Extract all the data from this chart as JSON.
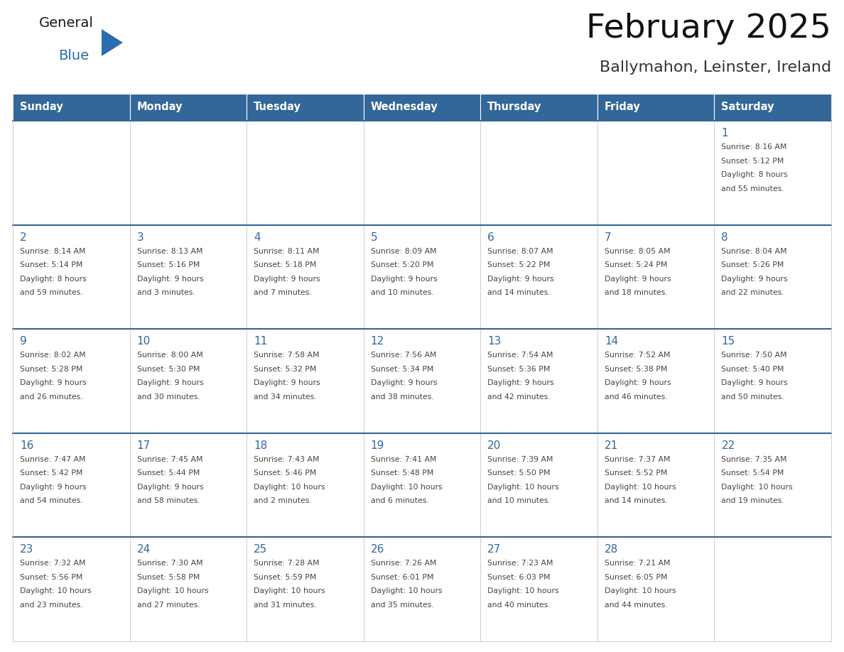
{
  "title": "February 2025",
  "subtitle": "Ballymahon, Leinster, Ireland",
  "header_bg": "#336699",
  "header_text_color": "#ffffff",
  "cell_bg": "#ffffff",
  "cell_bg_alt": "#f2f2f2",
  "day_number_color": "#336699",
  "info_text_color": "#444444",
  "row_top_line_color": "#336699",
  "days_of_week": [
    "Sunday",
    "Monday",
    "Tuesday",
    "Wednesday",
    "Thursday",
    "Friday",
    "Saturday"
  ],
  "weeks": [
    [
      {
        "day": null,
        "info": ""
      },
      {
        "day": null,
        "info": ""
      },
      {
        "day": null,
        "info": ""
      },
      {
        "day": null,
        "info": ""
      },
      {
        "day": null,
        "info": ""
      },
      {
        "day": null,
        "info": ""
      },
      {
        "day": 1,
        "info": "Sunrise: 8:16 AM\nSunset: 5:12 PM\nDaylight: 8 hours\nand 55 minutes."
      }
    ],
    [
      {
        "day": 2,
        "info": "Sunrise: 8:14 AM\nSunset: 5:14 PM\nDaylight: 8 hours\nand 59 minutes."
      },
      {
        "day": 3,
        "info": "Sunrise: 8:13 AM\nSunset: 5:16 PM\nDaylight: 9 hours\nand 3 minutes."
      },
      {
        "day": 4,
        "info": "Sunrise: 8:11 AM\nSunset: 5:18 PM\nDaylight: 9 hours\nand 7 minutes."
      },
      {
        "day": 5,
        "info": "Sunrise: 8:09 AM\nSunset: 5:20 PM\nDaylight: 9 hours\nand 10 minutes."
      },
      {
        "day": 6,
        "info": "Sunrise: 8:07 AM\nSunset: 5:22 PM\nDaylight: 9 hours\nand 14 minutes."
      },
      {
        "day": 7,
        "info": "Sunrise: 8:05 AM\nSunset: 5:24 PM\nDaylight: 9 hours\nand 18 minutes."
      },
      {
        "day": 8,
        "info": "Sunrise: 8:04 AM\nSunset: 5:26 PM\nDaylight: 9 hours\nand 22 minutes."
      }
    ],
    [
      {
        "day": 9,
        "info": "Sunrise: 8:02 AM\nSunset: 5:28 PM\nDaylight: 9 hours\nand 26 minutes."
      },
      {
        "day": 10,
        "info": "Sunrise: 8:00 AM\nSunset: 5:30 PM\nDaylight: 9 hours\nand 30 minutes."
      },
      {
        "day": 11,
        "info": "Sunrise: 7:58 AM\nSunset: 5:32 PM\nDaylight: 9 hours\nand 34 minutes."
      },
      {
        "day": 12,
        "info": "Sunrise: 7:56 AM\nSunset: 5:34 PM\nDaylight: 9 hours\nand 38 minutes."
      },
      {
        "day": 13,
        "info": "Sunrise: 7:54 AM\nSunset: 5:36 PM\nDaylight: 9 hours\nand 42 minutes."
      },
      {
        "day": 14,
        "info": "Sunrise: 7:52 AM\nSunset: 5:38 PM\nDaylight: 9 hours\nand 46 minutes."
      },
      {
        "day": 15,
        "info": "Sunrise: 7:50 AM\nSunset: 5:40 PM\nDaylight: 9 hours\nand 50 minutes."
      }
    ],
    [
      {
        "day": 16,
        "info": "Sunrise: 7:47 AM\nSunset: 5:42 PM\nDaylight: 9 hours\nand 54 minutes."
      },
      {
        "day": 17,
        "info": "Sunrise: 7:45 AM\nSunset: 5:44 PM\nDaylight: 9 hours\nand 58 minutes."
      },
      {
        "day": 18,
        "info": "Sunrise: 7:43 AM\nSunset: 5:46 PM\nDaylight: 10 hours\nand 2 minutes."
      },
      {
        "day": 19,
        "info": "Sunrise: 7:41 AM\nSunset: 5:48 PM\nDaylight: 10 hours\nand 6 minutes."
      },
      {
        "day": 20,
        "info": "Sunrise: 7:39 AM\nSunset: 5:50 PM\nDaylight: 10 hours\nand 10 minutes."
      },
      {
        "day": 21,
        "info": "Sunrise: 7:37 AM\nSunset: 5:52 PM\nDaylight: 10 hours\nand 14 minutes."
      },
      {
        "day": 22,
        "info": "Sunrise: 7:35 AM\nSunset: 5:54 PM\nDaylight: 10 hours\nand 19 minutes."
      }
    ],
    [
      {
        "day": 23,
        "info": "Sunrise: 7:32 AM\nSunset: 5:56 PM\nDaylight: 10 hours\nand 23 minutes."
      },
      {
        "day": 24,
        "info": "Sunrise: 7:30 AM\nSunset: 5:58 PM\nDaylight: 10 hours\nand 27 minutes."
      },
      {
        "day": 25,
        "info": "Sunrise: 7:28 AM\nSunset: 5:59 PM\nDaylight: 10 hours\nand 31 minutes."
      },
      {
        "day": 26,
        "info": "Sunrise: 7:26 AM\nSunset: 6:01 PM\nDaylight: 10 hours\nand 35 minutes."
      },
      {
        "day": 27,
        "info": "Sunrise: 7:23 AM\nSunset: 6:03 PM\nDaylight: 10 hours\nand 40 minutes."
      },
      {
        "day": 28,
        "info": "Sunrise: 7:21 AM\nSunset: 6:05 PM\nDaylight: 10 hours\nand 44 minutes."
      },
      {
        "day": null,
        "info": ""
      }
    ]
  ],
  "logo_general_color": "#1a1a1a",
  "logo_blue_color": "#2b6cb0",
  "fig_width": 11.88,
  "fig_height": 9.18
}
